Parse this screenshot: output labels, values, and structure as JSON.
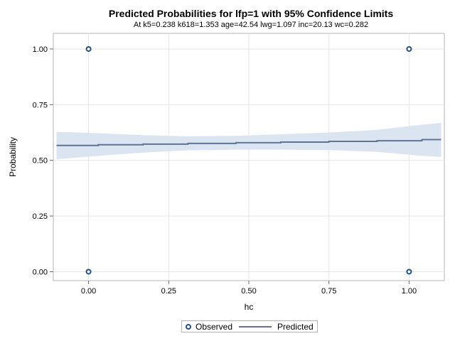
{
  "chart_data": {
    "type": "line",
    "title": "Predicted Probabilities for lfp=1 with 95% Confidence Limits",
    "subtitle": "At k5=0.238 k618=1.353 age=42.54 lwg=1.097 inc=20.13 wc=0.282",
    "xlabel": "hc",
    "ylabel": "Probability",
    "xlim": [
      -0.11,
      1.11
    ],
    "ylim": [
      -0.04,
      1.07
    ],
    "x_ticks": [
      "0.00",
      "0.25",
      "0.50",
      "0.75",
      "1.00"
    ],
    "y_ticks": [
      "0.00",
      "0.25",
      "0.50",
      "0.75",
      "1.00"
    ],
    "grid": true,
    "legend_position": "bottom",
    "series": [
      {
        "name": "Observed",
        "kind": "scatter",
        "color": "#1f4f86",
        "points": [
          [
            0,
            1
          ],
          [
            0,
            0
          ],
          [
            1,
            1
          ],
          [
            1,
            0
          ]
        ]
      },
      {
        "name": "Predicted",
        "kind": "step",
        "color": "#5f7593",
        "x": [
          -0.1,
          0.03,
          0.17,
          0.31,
          0.46,
          0.6,
          0.75,
          0.9,
          1.04,
          1.1
        ],
        "y": [
          0.567,
          0.57,
          0.573,
          0.576,
          0.579,
          0.582,
          0.585,
          0.588,
          0.593,
          0.593
        ],
        "lower": [
          0.505,
          0.52,
          0.535,
          0.545,
          0.548,
          0.548,
          0.546,
          0.538,
          0.52,
          0.515
        ],
        "upper": [
          0.628,
          0.622,
          0.613,
          0.608,
          0.61,
          0.617,
          0.625,
          0.637,
          0.66,
          0.668
        ],
        "band_color": "#dbe5f1"
      }
    ]
  }
}
